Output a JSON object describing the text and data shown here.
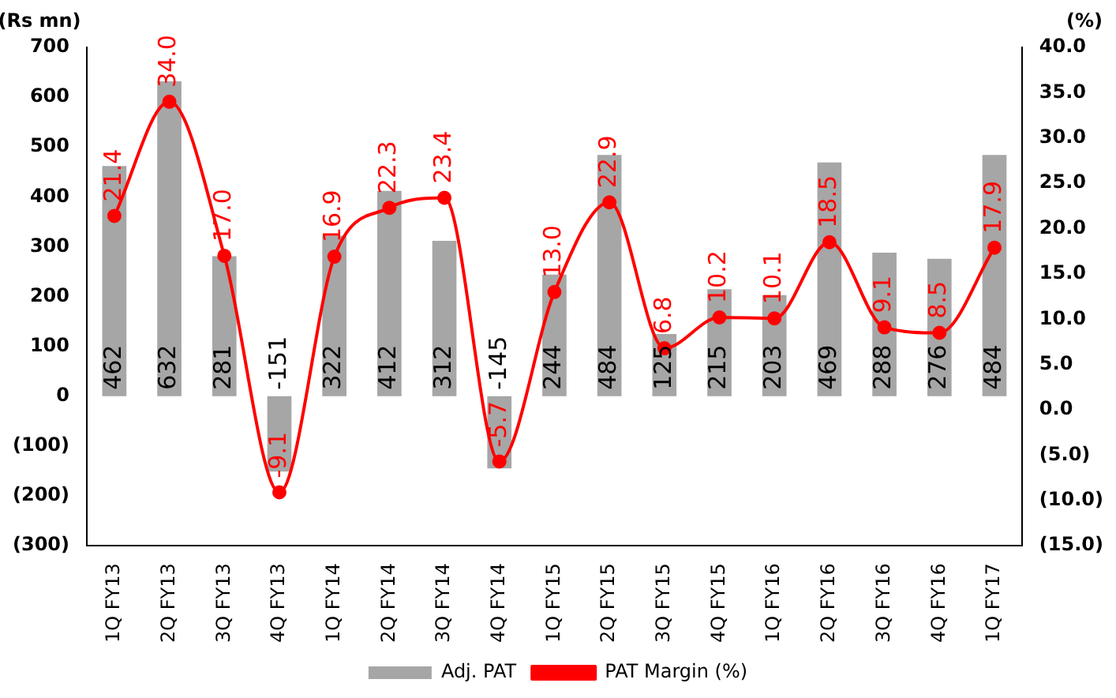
{
  "chart_data": {
    "type": "bar",
    "ylabel": "(Rs mn)",
    "y2label": "(%)",
    "categories": [
      "1Q FY13",
      "2Q FY13",
      "3Q FY13",
      "4Q FY13",
      "1Q FY14",
      "2Q FY14",
      "3Q FY14",
      "4Q FY14",
      "1Q FY15",
      "2Q FY15",
      "3Q FY15",
      "4Q FY15",
      "1Q FY16",
      "2Q FY16",
      "3Q FY16",
      "4Q FY16",
      "1Q FY17"
    ],
    "series": [
      {
        "name": "Adj. PAT",
        "color": "#a6a6a6",
        "values": [
          462,
          632,
          281,
          -151,
          322,
          412,
          312,
          -145,
          244,
          484,
          125,
          215,
          203,
          469,
          288,
          276,
          484
        ],
        "value_labels": [
          "462",
          "632",
          "281",
          "-151",
          "322",
          "412",
          "312",
          "-145",
          "244",
          "484",
          "125",
          "215",
          "203",
          "469",
          "288",
          "276",
          "484"
        ]
      },
      {
        "name": "PAT Margin (%)",
        "type": "line",
        "axis": "y2",
        "color": "#ff0000",
        "marker": "circle",
        "values": [
          21.4,
          34.0,
          17.0,
          -9.1,
          16.9,
          22.3,
          23.4,
          -5.7,
          13.0,
          22.9,
          6.8,
          10.2,
          10.1,
          18.5,
          9.1,
          8.5,
          17.9
        ],
        "value_labels": [
          "21.4",
          "34.0",
          "17.0",
          "-9.1",
          "16.9",
          "22.3",
          "23.4",
          "-5.7",
          "13.0",
          "22.9",
          "6.8",
          "10.2",
          "10.1",
          "18.5",
          "9.1",
          "8.5",
          "17.9"
        ]
      }
    ],
    "ylim": [
      -300,
      700
    ],
    "yticks": [
      {
        "value": -300,
        "label": "(300)"
      },
      {
        "value": -200,
        "label": "(200)"
      },
      {
        "value": -100,
        "label": "(100)"
      },
      0,
      100,
      200,
      300,
      400,
      500,
      600,
      700
    ],
    "y2lim": [
      -15,
      40
    ],
    "y2ticks": [
      {
        "value": -15,
        "label": "(15.0)"
      },
      {
        "value": -10,
        "label": "(10.0)"
      },
      {
        "value": -5,
        "label": "(5.0)"
      },
      {
        "value": 0,
        "label": "0.0"
      },
      {
        "value": 5,
        "label": "5.0"
      },
      {
        "value": 10,
        "label": "10.0"
      },
      {
        "value": 15,
        "label": "15.0"
      },
      {
        "value": 20,
        "label": "20.0"
      },
      {
        "value": 25,
        "label": "25.0"
      },
      {
        "value": 30,
        "label": "30.0"
      },
      {
        "value": 35,
        "label": "35.0"
      },
      {
        "value": 40,
        "label": "40.0"
      }
    ],
    "legend": "bottom"
  }
}
